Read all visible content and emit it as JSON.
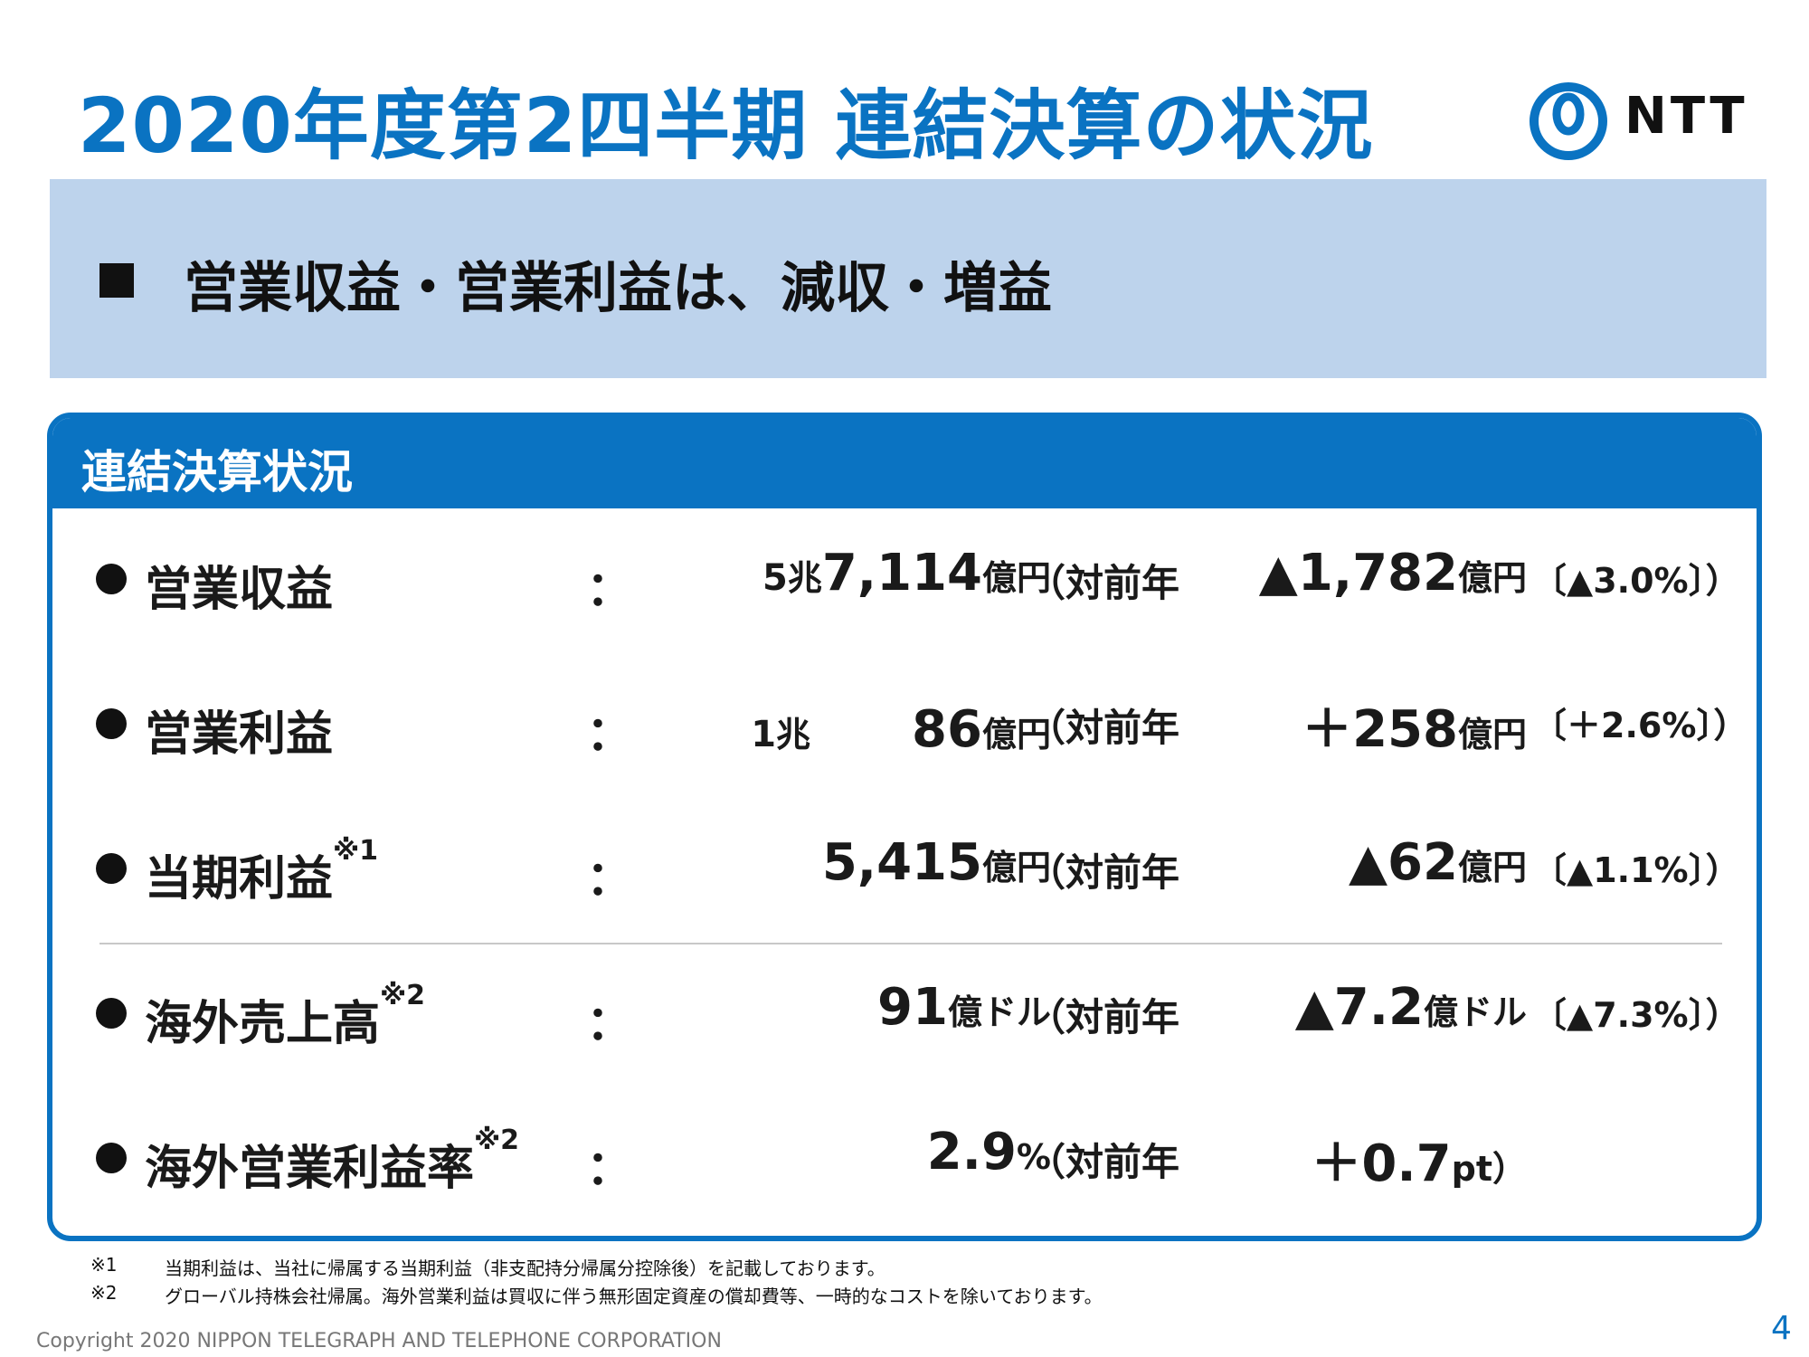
{
  "title": "2020年度第2四半期 連結決算の状況",
  "logo": {
    "text": "NTT",
    "icon": "ntt-logo-icon"
  },
  "banner": {
    "bullet": "■",
    "text": "営業収益・営業利益は、減収・増益"
  },
  "panel": {
    "title": "連結決算状況",
    "yoy_label": "（対前年",
    "rows": [
      {
        "label": "営業収益",
        "note": "",
        "colon": "：",
        "value": [
          [
            "5",
            "mid"
          ],
          [
            "兆",
            "unit"
          ],
          [
            "7,114",
            "big"
          ],
          [
            "億円",
            "unit"
          ]
        ],
        "change": [
          [
            "▲1,782",
            "big"
          ],
          [
            "億円",
            "unit"
          ]
        ],
        "pct": "〔▲3.0%〕）"
      },
      {
        "label": "営業利益",
        "note": "",
        "colon": "：",
        "value": [
          [
            "1",
            "mid"
          ],
          [
            "兆",
            "unit"
          ],
          [
            "　　86",
            "big"
          ],
          [
            "億円",
            "unit"
          ]
        ],
        "change": [
          [
            "＋258",
            "big"
          ],
          [
            "億円",
            "unit"
          ]
        ],
        "pct": "〔＋2.6%〕）"
      },
      {
        "label": "当期利益",
        "note": "※1",
        "colon": "：",
        "value": [
          [
            "5,415",
            "big"
          ],
          [
            "億円",
            "unit"
          ]
        ],
        "change": [
          [
            "▲62",
            "big"
          ],
          [
            "億円",
            "unit"
          ]
        ],
        "pct": "〔▲1.1%〕）"
      },
      {
        "label": "海外売上高",
        "note": "※2",
        "colon": "：",
        "value": [
          [
            "91",
            "big"
          ],
          [
            "億ドル",
            "unit"
          ]
        ],
        "change": [
          [
            "▲7.2",
            "big"
          ],
          [
            "億ドル",
            "unit"
          ]
        ],
        "pct": "〔▲7.3%〕）"
      },
      {
        "label": "海外営業利益率",
        "note": "※2",
        "colon": "：",
        "value": [
          [
            "2.9",
            "big"
          ],
          [
            "%",
            "unit"
          ]
        ],
        "change": [
          [
            "＋0.7",
            "big"
          ],
          [
            "pt）",
            "unit"
          ]
        ],
        "pct": ""
      }
    ]
  },
  "footnotes": [
    {
      "mark": "※1",
      "text": "当期利益は、当社に帰属する当期利益（非支配持分帰属分控除後）を記載しております。"
    },
    {
      "mark": "※2",
      "text": "グローバル持株会社帰属。海外営業利益は買収に伴う無形固定資産の償却費等、一時的なコストを除いております。"
    }
  ],
  "copyright": "Copyright 2020 NIPPON TELEGRAPH AND TELEPHONE CORPORATION",
  "page_number": "4",
  "colors": {
    "brand_blue": "#0a73c2",
    "banner_bg": "#bdd3ec"
  }
}
